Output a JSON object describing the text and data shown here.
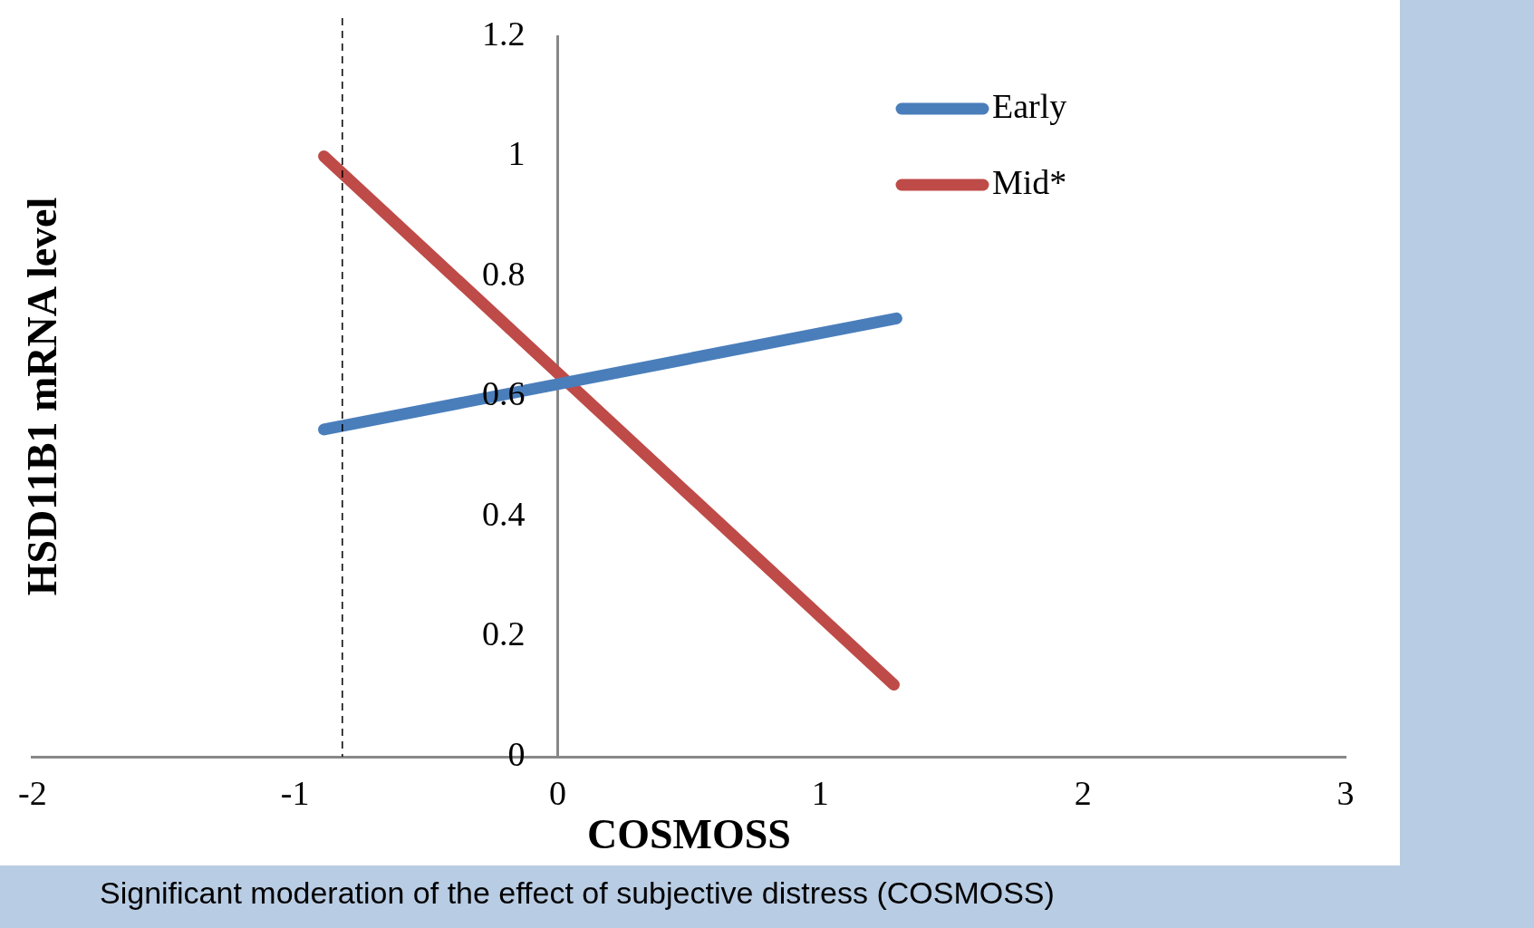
{
  "chart_data": {
    "type": "line",
    "xlabel": "COSMOSS",
    "ylabel": "HSD11B1 mRNA level",
    "xlim": [
      -2,
      3
    ],
    "xticks": [
      -2,
      -1,
      0,
      1,
      2,
      3
    ],
    "ylim": [
      0,
      1.2
    ],
    "yticks": [
      0,
      0.2,
      0.4,
      0.6,
      0.8,
      1,
      1.2
    ],
    "grid": false,
    "legend": "top right",
    "marker": "none",
    "line_style": "solid",
    "series": [
      {
        "name": "Early",
        "color": "#4a7ebb",
        "x": [
          -0.89,
          1.29
        ],
        "values": [
          0.545,
          0.73
        ]
      },
      {
        "name": "Mid*",
        "color": "#be4b48",
        "x": [
          -0.89,
          1.28
        ],
        "values": [
          1.0,
          0.12
        ]
      }
    ],
    "ref_lines": [
      {
        "axis": "x",
        "value": -0.82,
        "color": "#000000",
        "line_style": "dashed"
      }
    ],
    "annotations": [
      "Significant moderation of the effect of subjective distress (COSMOSS)"
    ]
  }
}
